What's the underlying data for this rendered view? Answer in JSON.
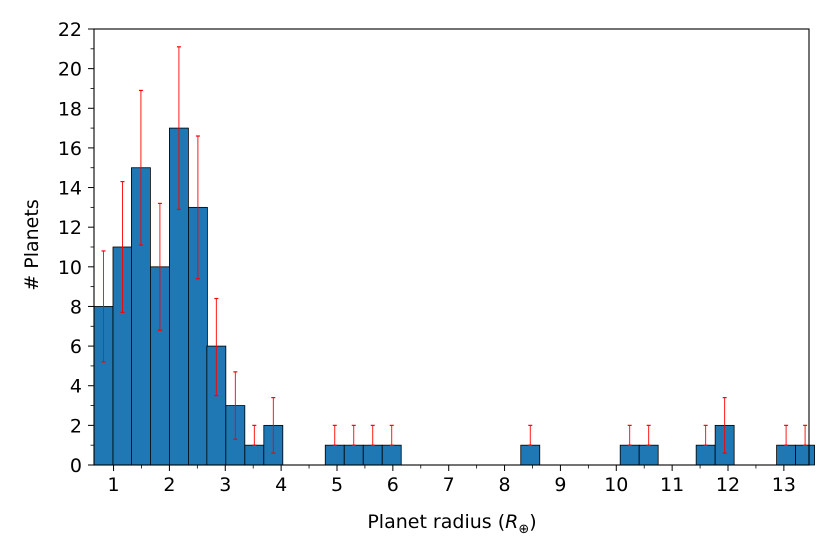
{
  "chart_data": {
    "type": "bar",
    "title": "",
    "xlabel": "Planet radius (",
    "xlabel_symbol": "R",
    "xlabel_subscript": "⊕",
    "xlabel_close": ")",
    "ylabel": "# Planets",
    "xlim": [
      0.65,
      13.45
    ],
    "ylim": [
      0,
      22
    ],
    "bin_width": 0.34,
    "grid": false,
    "bar_color": "#1f77b4",
    "bar_edge_color": "#000000",
    "error_color": "#ff0000",
    "xticks": [
      1,
      2,
      3,
      4,
      5,
      6,
      7,
      8,
      9,
      10,
      11,
      12,
      13
    ],
    "xtick_labels": [
      "1",
      "2",
      "3",
      "4",
      "5",
      "6",
      "7",
      "8",
      "9",
      "10",
      "11",
      "12",
      "13"
    ],
    "yticks": [
      0,
      2,
      4,
      6,
      8,
      10,
      12,
      14,
      16,
      18,
      20,
      22
    ],
    "ytick_labels": [
      "0",
      "2",
      "4",
      "6",
      "8",
      "10",
      "12",
      "14",
      "16",
      "18",
      "20",
      "22"
    ],
    "bins": [
      {
        "x": 0.82,
        "value": 8,
        "err_low": 5.2,
        "err_high": 10.8
      },
      {
        "x": 1.16,
        "value": 11,
        "err_low": 7.7,
        "err_high": 14.3
      },
      {
        "x": 1.49,
        "value": 15,
        "err_low": 11.1,
        "err_high": 18.9
      },
      {
        "x": 1.83,
        "value": 10,
        "err_low": 6.8,
        "err_high": 13.2
      },
      {
        "x": 2.17,
        "value": 17,
        "err_low": 12.9,
        "err_high": 21.1
      },
      {
        "x": 2.51,
        "value": 13,
        "err_low": 9.4,
        "err_high": 16.6
      },
      {
        "x": 2.84,
        "value": 6,
        "err_low": 3.5,
        "err_high": 8.4
      },
      {
        "x": 3.18,
        "value": 3,
        "err_low": 1.3,
        "err_high": 4.7
      },
      {
        "x": 3.52,
        "value": 1,
        "err_low": 1.0,
        "err_high": 2.0
      },
      {
        "x": 3.86,
        "value": 2,
        "err_low": 0.6,
        "err_high": 3.4
      },
      {
        "x": 4.96,
        "value": 1,
        "err_low": 1.0,
        "err_high": 2.0
      },
      {
        "x": 5.3,
        "value": 1,
        "err_low": 1.0,
        "err_high": 2.0
      },
      {
        "x": 5.64,
        "value": 1,
        "err_low": 1.0,
        "err_high": 2.0
      },
      {
        "x": 5.98,
        "value": 1,
        "err_low": 1.0,
        "err_high": 2.0
      },
      {
        "x": 8.46,
        "value": 1,
        "err_low": 1.0,
        "err_high": 2.0
      },
      {
        "x": 10.24,
        "value": 1,
        "err_low": 1.0,
        "err_high": 2.0
      },
      {
        "x": 10.58,
        "value": 1,
        "err_low": 1.0,
        "err_high": 2.0
      },
      {
        "x": 11.6,
        "value": 1,
        "err_low": 1.0,
        "err_high": 2.0
      },
      {
        "x": 11.94,
        "value": 2,
        "err_low": 0.6,
        "err_high": 3.4
      },
      {
        "x": 13.04,
        "value": 1,
        "err_low": 1.0,
        "err_high": 2.0
      },
      {
        "x": 13.38,
        "value": 1,
        "err_low": 1.0,
        "err_high": 2.0
      }
    ]
  }
}
